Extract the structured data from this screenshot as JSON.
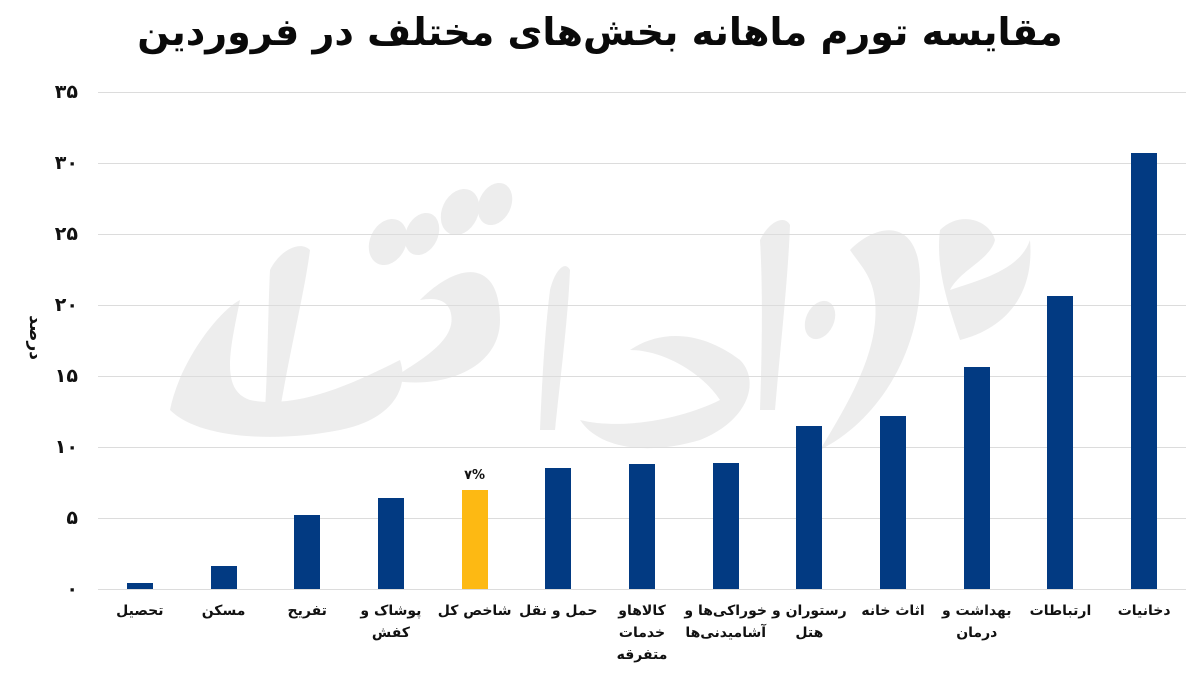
{
  "title": "مقایسه تورم ماهانه بخش‌های مختلف در فروردین",
  "colors": {
    "bar_default": "#023a82",
    "bar_highlight": "#fdb913",
    "gridline": "#dcdcdc",
    "watermark": "#ededed"
  },
  "watermark_text": "دنیای اقتصاد",
  "yaxis": {
    "label": "درصد",
    "ticks": [
      {
        "value": 0,
        "label": "۰"
      },
      {
        "value": 5,
        "label": "۵"
      },
      {
        "value": 10,
        "label": "۱۰"
      },
      {
        "value": 15,
        "label": "۱۵"
      },
      {
        "value": 20,
        "label": "۲۰"
      },
      {
        "value": 25,
        "label": "۲۵"
      },
      {
        "value": 30,
        "label": "۳۰"
      },
      {
        "value": 35,
        "label": "۳۵"
      }
    ]
  },
  "highlight_label": "۷%",
  "chart_data": {
    "type": "bar",
    "title": "مقایسه تورم ماهانه بخش‌های مختلف در فروردین",
    "xlabel": "",
    "ylabel": "درصد",
    "ylim": [
      0,
      35
    ],
    "grid": true,
    "legend": null,
    "categories": [
      "تحصیل",
      "مسکن",
      "تفریح",
      "پوشاک و کفش",
      "شاخص کل",
      "حمل و نقل",
      "کالاها و خدمات متفرقه",
      "خوراکی‌ها و آشامیدنی‌ها",
      "رستوران و هتل",
      "اثاث خانه",
      "بهداشت و درمان",
      "ارتباطات",
      "دخانیات"
    ],
    "x_tick_lines": [
      [
        "تحصیل"
      ],
      [
        "مسکن"
      ],
      [
        "تفریح"
      ],
      [
        "پوشاک و",
        "کفش"
      ],
      [
        "شاخص کل"
      ],
      [
        "حمل و نقل"
      ],
      [
        "کالاهاو",
        "خدمات",
        "متفرقه"
      ],
      [
        "خوراکی‌ها و",
        "آشامیدنی‌ها"
      ],
      [
        "رستوران و",
        "هتل"
      ],
      [
        "اثاث خانه"
      ],
      [
        "بهداشت و",
        "درمان"
      ],
      [
        "ارتباطات"
      ],
      [
        "دخانیات"
      ]
    ],
    "values": [
      0.4,
      1.6,
      5.2,
      6.4,
      7.0,
      8.5,
      8.8,
      8.9,
      11.5,
      12.2,
      15.6,
      20.6,
      30.7
    ],
    "highlight_index": 4,
    "annotations": [
      {
        "index": 4,
        "text": "۷%"
      }
    ]
  }
}
